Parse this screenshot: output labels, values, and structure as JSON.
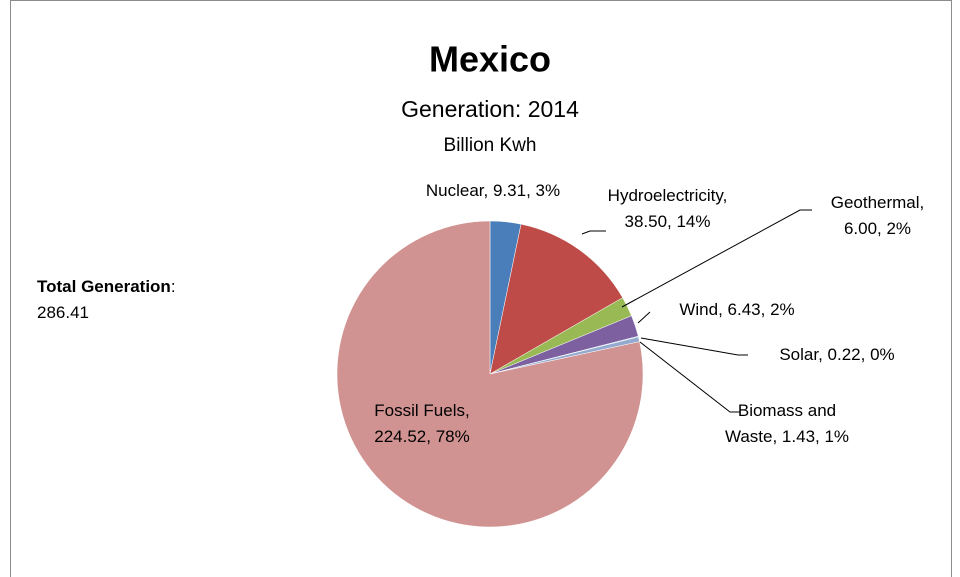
{
  "chart_data": {
    "type": "pie",
    "title": "Mexico",
    "subtitle": "Generation: 2014",
    "unit_label": "Billion Kwh",
    "categories": [
      "Nuclear",
      "Hydroelectricity",
      "Geothermal",
      "Wind",
      "Solar",
      "Biomass and Waste",
      "Fossil Fuels"
    ],
    "values": [
      9.31,
      38.5,
      6.0,
      6.43,
      0.22,
      1.43,
      224.52
    ],
    "value_labels": [
      "Nuclear, 9.31, 3%",
      "Hydroelectricity, 38.50, 14%",
      "Geothermal, 6.00, 2%",
      "Wind, 6.43, 2%",
      "Solar, 0.22, 0%",
      "Biomass  and Waste, 1.43, 1%",
      "Fossil Fuels, 224.52, 78%"
    ],
    "colors": [
      "#4a7ebb",
      "#be4b48",
      "#98b954",
      "#7d60a0",
      "#46aac5",
      "#93a9cf",
      "#d19391"
    ],
    "annotation": {
      "label": "Total Generation",
      "punct": ":",
      "value": 286.41
    }
  }
}
